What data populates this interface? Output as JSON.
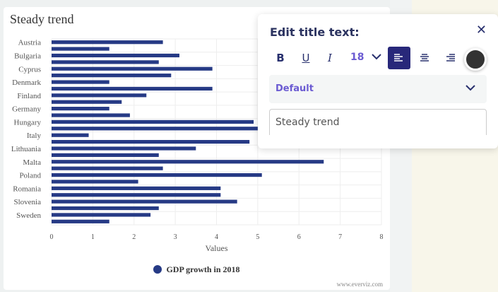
{
  "chart_data": {
    "type": "bar",
    "orientation": "horizontal",
    "title": "Steady trend",
    "xlabel": "Values",
    "xlim": [
      0,
      8
    ],
    "xticks": [
      "0",
      "1",
      "2",
      "3",
      "4",
      "5",
      "6",
      "7",
      "8"
    ],
    "grid": true,
    "legend_placement": "bottom",
    "categories": [
      "Austria",
      "",
      "Bulgaria",
      "",
      "Cyprus",
      "",
      "Denmark",
      "",
      "Finland",
      "",
      "Germany",
      "",
      "Hungary",
      "",
      "Italy",
      "",
      "Lithuania",
      "",
      "Malta",
      "",
      "Poland",
      "",
      "Romania",
      "",
      "Slovenia",
      "",
      "Sweden",
      ""
    ],
    "series": [
      {
        "name": "GDP growth in 2018",
        "color": "#263a85",
        "values": [
          2.7,
          1.4,
          3.1,
          2.6,
          3.9,
          2.9,
          1.4,
          3.9,
          2.3,
          1.7,
          1.4,
          1.9,
          4.9,
          5.0,
          0.9,
          4.8,
          3.5,
          2.6,
          6.6,
          2.7,
          5.1,
          2.1,
          4.1,
          4.1,
          4.5,
          2.6,
          2.4,
          1.4
        ]
      }
    ],
    "credit": "www.everviz.com"
  },
  "panel": {
    "title": "Edit title text:",
    "font_size": "18",
    "font_family": "Default",
    "title_value": "Steady trend",
    "text_color": "#333333",
    "alignment": "left"
  }
}
